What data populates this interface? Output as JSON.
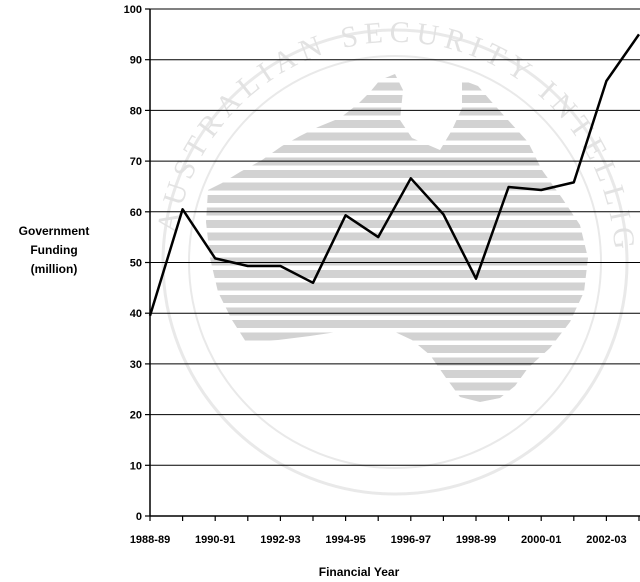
{
  "chart_data": {
    "type": "line",
    "title": "",
    "xlabel": "Financial Year",
    "ylabel_lines": [
      "Government",
      "Funding",
      "(million)"
    ],
    "ylim": [
      0,
      100
    ],
    "yticks": [
      0,
      10,
      20,
      30,
      40,
      50,
      60,
      70,
      80,
      90,
      100
    ],
    "xtick_labels": [
      "1988-89",
      "1990-91",
      "1992-93",
      "1994-95",
      "1996-97",
      "1998-99",
      "2000-01",
      "2002-03"
    ],
    "x": [
      "1988-89",
      "1989-90",
      "1990-91",
      "1991-92",
      "1992-93",
      "1993-94",
      "1994-95",
      "1995-96",
      "1996-97",
      "1997-98",
      "1998-99",
      "1999-00",
      "2000-01",
      "2001-02",
      "2002-03",
      "2003-04"
    ],
    "values": [
      39.5,
      60.5,
      50.8,
      49.3,
      49.3,
      46,
      59.3,
      55,
      66.6,
      59.5,
      46.8,
      64.9,
      64.3,
      65.8,
      85.8,
      95
    ],
    "grid": true,
    "line_color": "#000000",
    "grid_color": "#000000",
    "watermark_text": "AUSTRALIAN SECURITY INTELLIGENCE ORGANISATION"
  }
}
